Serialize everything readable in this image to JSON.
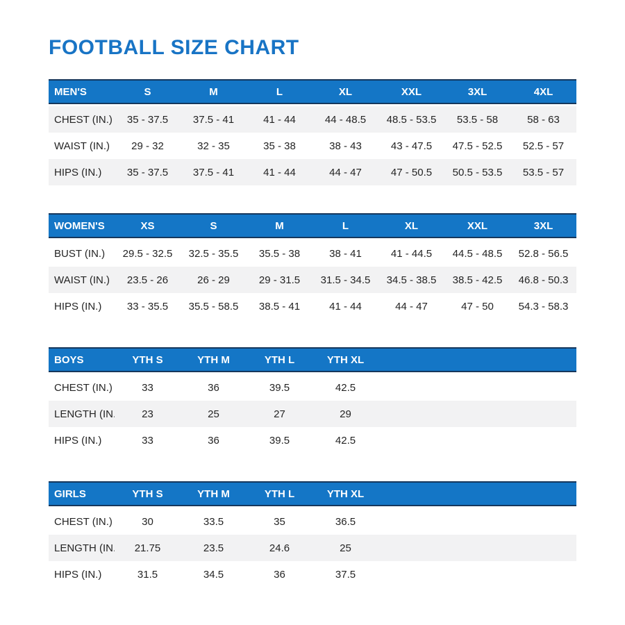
{
  "page": {
    "title": "FOOTBALL SIZE CHART"
  },
  "colors": {
    "header_background": "#1476C6",
    "header_border": "#16375C",
    "title_text": "#1874C5",
    "alt_row_background": "#F2F2F3",
    "body_text": "#242424",
    "header_text": "#FFFFFF"
  },
  "tables": [
    {
      "name": "mens",
      "columns": [
        "MEN'S",
        "S",
        "M",
        "L",
        "XL",
        "XXL",
        "3XL",
        "4XL"
      ],
      "row_shading": [
        "alt",
        "plain",
        "alt"
      ],
      "rows": [
        {
          "label": "CHEST (IN.)",
          "values": [
            "35 - 37.5",
            "37.5 - 41",
            "41 - 44",
            "44 - 48.5",
            "48.5 - 53.5",
            "53.5 - 58",
            "58 - 63"
          ]
        },
        {
          "label": "WAIST (IN.)",
          "values": [
            "29 - 32",
            "32 - 35",
            "35 - 38",
            "38 - 43",
            "43 - 47.5",
            "47.5 - 52.5",
            "52.5 - 57"
          ]
        },
        {
          "label": "HIPS (IN.)",
          "values": [
            "35 - 37.5",
            "37.5 - 41",
            "41 - 44",
            "44 - 47",
            "47 - 50.5",
            "50.5 - 53.5",
            "53.5 - 57"
          ]
        }
      ]
    },
    {
      "name": "womens",
      "columns": [
        "WOMEN'S",
        "XS",
        "S",
        "M",
        "L",
        "XL",
        "XXL",
        "3XL"
      ],
      "row_shading": [
        "plain",
        "alt",
        "plain"
      ],
      "rows": [
        {
          "label": "BUST (IN.)",
          "values": [
            "29.5 - 32.5",
            "32.5 - 35.5",
            "35.5 - 38",
            "38 - 41",
            "41 - 44.5",
            "44.5 - 48.5",
            "52.8 - 56.5"
          ]
        },
        {
          "label": "WAIST (IN.)",
          "values": [
            "23.5 - 26",
            "26 - 29",
            "29 - 31.5",
            "31.5 - 34.5",
            "34.5 - 38.5",
            "38.5 - 42.5",
            "46.8 - 50.3"
          ]
        },
        {
          "label": "HIPS (IN.)",
          "values": [
            "33 - 35.5",
            "35.5 - 58.5",
            "38.5 - 41",
            "41 - 44",
            "44 - 47",
            "47 - 50",
            "54.3 - 58.3"
          ]
        }
      ]
    },
    {
      "name": "boys",
      "columns": [
        "BOYS",
        "YTH S",
        "YTH M",
        "YTH L",
        "YTH XL"
      ],
      "row_shading": [
        "plain",
        "alt",
        "plain"
      ],
      "rows": [
        {
          "label": "CHEST (IN.)",
          "values": [
            "33",
            "36",
            "39.5",
            "42.5"
          ]
        },
        {
          "label": "LENGTH (IN.)",
          "values": [
            "23",
            "25",
            "27",
            "29"
          ]
        },
        {
          "label": "HIPS (IN.)",
          "values": [
            "33",
            "36",
            "39.5",
            "42.5"
          ]
        }
      ]
    },
    {
      "name": "girls",
      "columns": [
        "GIRLS",
        "YTH S",
        "YTH M",
        "YTH L",
        "YTH XL"
      ],
      "row_shading": [
        "plain",
        "alt",
        "plain"
      ],
      "rows": [
        {
          "label": "CHEST (IN.)",
          "values": [
            "30",
            "33.5",
            "35",
            "36.5"
          ]
        },
        {
          "label": "LENGTH (IN.)",
          "values": [
            "21.75",
            "23.5",
            "24.6",
            "25"
          ]
        },
        {
          "label": "HIPS (IN.)",
          "values": [
            "31.5",
            "34.5",
            "36",
            "37.5"
          ]
        }
      ]
    }
  ]
}
